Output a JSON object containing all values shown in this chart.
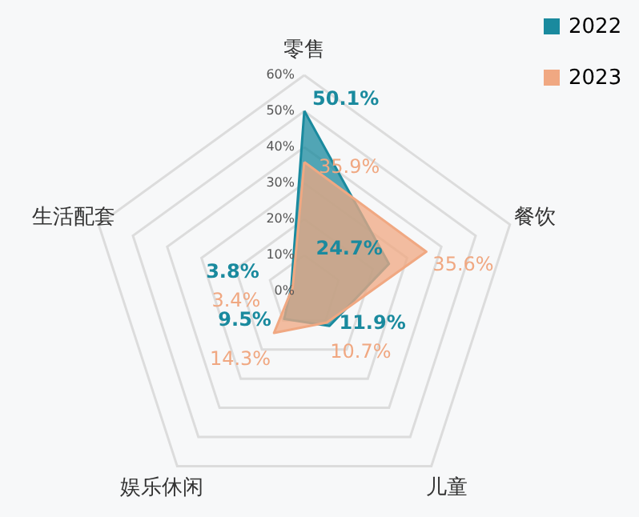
{
  "chart_data": {
    "type": "radar",
    "categories": [
      "零售",
      "餐饮",
      "儿童",
      "娱乐休闲",
      "生活配套"
    ],
    "series": [
      {
        "name": "2022",
        "color": "#1a8a9e",
        "values": [
          50.1,
          24.7,
          11.9,
          9.5,
          3.8
        ],
        "value_labels": [
          "50.1%",
          "24.7%",
          "11.9%",
          "9.5%",
          "3.8%"
        ]
      },
      {
        "name": "2023",
        "color": "#f0a882",
        "values": [
          35.9,
          35.6,
          10.7,
          14.3,
          3.4
        ],
        "value_labels": [
          "35.9%",
          "35.6%",
          "10.7%",
          "14.3%",
          "3.4%"
        ]
      }
    ],
    "ylim": [
      0,
      60
    ],
    "yticks": [
      {
        "value": 0,
        "label": "0%"
      },
      {
        "value": 10,
        "label": "10%"
      },
      {
        "value": 20,
        "label": "20%"
      },
      {
        "value": 30,
        "label": "30%"
      },
      {
        "value": 40,
        "label": "40%"
      },
      {
        "value": 50,
        "label": "50%"
      },
      {
        "value": 60,
        "label": "60%"
      }
    ],
    "grid": true,
    "legend": "top right"
  }
}
